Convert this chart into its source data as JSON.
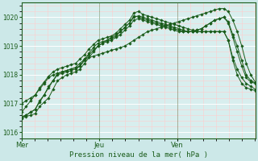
{
  "background_color": "#cce8e8",
  "plot_bg_color": "#d8eeee",
  "grid_color_major": "#ffffff",
  "grid_color_minor": "#ffcccc",
  "line_color": "#1a5c1a",
  "xlabel": "Pression niveau de la mer( hPa )",
  "ylim": [
    1015.8,
    1020.5
  ],
  "yticks": [
    1016,
    1017,
    1018,
    1019,
    1020
  ],
  "day_labels": [
    "Mer",
    "Jeu",
    "Ven"
  ],
  "day_positions": [
    0.0,
    0.333,
    0.667
  ],
  "series": [
    [
      1016.5,
      1016.6,
      1016.7,
      1016.8,
      1017.1,
      1017.3,
      1017.6,
      1017.8,
      1018.0,
      1018.05,
      1018.1,
      1018.15,
      1018.2,
      1018.3,
      1018.55,
      1018.7,
      1018.85,
      1019.0,
      1019.1,
      1019.2,
      1019.3,
      1019.4,
      1019.5,
      1019.65,
      1019.8,
      1020.05,
      1020.0,
      1019.95,
      1019.9,
      1019.85,
      1019.8,
      1019.75,
      1019.7,
      1019.65,
      1019.6,
      1019.55,
      1019.5,
      1019.5,
      1019.5,
      1019.55,
      1019.6,
      1019.7,
      1019.8,
      1019.9,
      1019.95,
      1020.0,
      1019.8,
      1019.3,
      1018.8,
      1018.3,
      1017.9,
      1017.75,
      1017.7
    ],
    [
      1016.5,
      1016.55,
      1016.6,
      1016.65,
      1016.9,
      1017.05,
      1017.2,
      1017.5,
      1017.8,
      1017.9,
      1018.0,
      1018.05,
      1018.1,
      1018.2,
      1018.4,
      1018.6,
      1018.8,
      1019.0,
      1019.1,
      1019.15,
      1019.2,
      1019.3,
      1019.4,
      1019.55,
      1019.7,
      1019.9,
      1019.95,
      1019.9,
      1019.85,
      1019.8,
      1019.75,
      1019.7,
      1019.65,
      1019.6,
      1019.55,
      1019.5,
      1019.5,
      1019.5,
      1019.5,
      1019.55,
      1019.6,
      1019.7,
      1019.8,
      1019.9,
      1019.95,
      1020.0,
      1019.85,
      1019.4,
      1019.0,
      1018.5,
      1018.0,
      1017.8,
      1017.72
    ],
    [
      1016.55,
      1016.6,
      1016.7,
      1016.8,
      1017.05,
      1017.3,
      1017.55,
      1017.8,
      1018.05,
      1018.1,
      1018.15,
      1018.2,
      1018.25,
      1018.3,
      1018.5,
      1018.75,
      1018.95,
      1019.1,
      1019.15,
      1019.2,
      1019.25,
      1019.35,
      1019.5,
      1019.65,
      1019.8,
      1020.0,
      1020.05,
      1020.0,
      1019.95,
      1019.9,
      1019.85,
      1019.8,
      1019.75,
      1019.7,
      1019.65,
      1019.6,
      1019.55,
      1019.5,
      1019.5,
      1019.5,
      1019.5,
      1019.5,
      1019.5,
      1019.5,
      1019.5,
      1019.5,
      1019.2,
      1018.6,
      1018.2,
      1017.9,
      1017.7,
      1017.6,
      1017.5
    ],
    [
      1016.7,
      1016.9,
      1017.1,
      1017.3,
      1017.55,
      1017.75,
      1017.95,
      1018.1,
      1018.2,
      1018.25,
      1018.3,
      1018.35,
      1018.4,
      1018.55,
      1018.7,
      1018.9,
      1019.05,
      1019.2,
      1019.25,
      1019.3,
      1019.35,
      1019.45,
      1019.6,
      1019.75,
      1019.9,
      1020.15,
      1020.2,
      1020.1,
      1020.05,
      1020.0,
      1019.95,
      1019.9,
      1019.85,
      1019.8,
      1019.75,
      1019.7,
      1019.65,
      1019.6,
      1019.55,
      1019.5,
      1019.5,
      1019.5,
      1019.5,
      1019.5,
      1019.5,
      1019.5,
      1019.2,
      1018.5,
      1018.0,
      1017.7,
      1017.55,
      1017.5,
      1017.45
    ],
    [
      1017.0,
      1017.1,
      1017.2,
      1017.3,
      1017.5,
      1017.7,
      1017.9,
      1018.0,
      1018.05,
      1018.1,
      1018.15,
      1018.2,
      1018.25,
      1018.4,
      1018.55,
      1018.6,
      1018.65,
      1018.7,
      1018.75,
      1018.8,
      1018.85,
      1018.9,
      1018.95,
      1019.0,
      1019.1,
      1019.2,
      1019.3,
      1019.4,
      1019.5,
      1019.55,
      1019.6,
      1019.65,
      1019.7,
      1019.75,
      1019.8,
      1019.85,
      1019.9,
      1019.95,
      1020.0,
      1020.05,
      1020.1,
      1020.15,
      1020.2,
      1020.25,
      1020.3,
      1020.3,
      1020.2,
      1019.9,
      1019.5,
      1019.0,
      1018.4,
      1018.0,
      1017.75
    ]
  ]
}
